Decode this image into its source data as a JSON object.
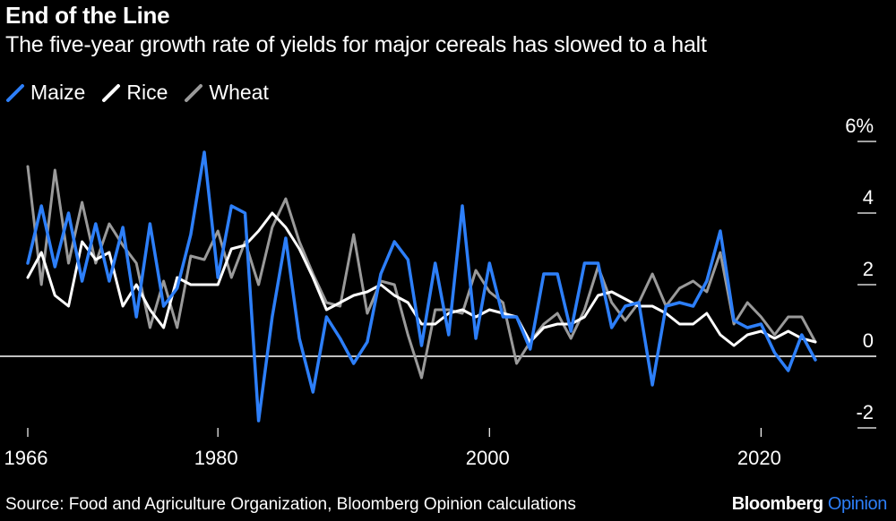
{
  "header": {
    "title": "End of the Line",
    "subtitle": "The five-year growth rate of yields for major cereals has slowed to a halt"
  },
  "footer": {
    "source": "Source: Food and Agriculture Organization, Bloomberg Opinion calculations",
    "brand_main": "Bloomberg",
    "brand_accent": "Opinion"
  },
  "chart_data": {
    "type": "line",
    "title": "End of the Line",
    "subtitle": "The five-year growth rate of yields for major cereals has slowed to a halt",
    "xlabel": "",
    "ylabel": "",
    "xlim": [
      1966,
      2024
    ],
    "ylim": [
      -2,
      6
    ],
    "x_ticks": [
      1966,
      1980,
      2000,
      2020
    ],
    "y_ticks": [
      6,
      4,
      2,
      0,
      -2
    ],
    "y_tick_labels": [
      "6%",
      "4",
      "2",
      "0",
      "-2"
    ],
    "legend_position": "top-left",
    "grid": false,
    "x": [
      1966,
      1967,
      1968,
      1969,
      1970,
      1971,
      1972,
      1973,
      1974,
      1975,
      1976,
      1977,
      1978,
      1979,
      1980,
      1981,
      1982,
      1983,
      1984,
      1985,
      1986,
      1987,
      1988,
      1989,
      1990,
      1991,
      1992,
      1993,
      1994,
      1995,
      1996,
      1997,
      1998,
      1999,
      2000,
      2001,
      2002,
      2003,
      2004,
      2005,
      2006,
      2007,
      2008,
      2009,
      2010,
      2011,
      2012,
      2013,
      2014,
      2015,
      2016,
      2017,
      2018,
      2019,
      2020,
      2021,
      2022,
      2023,
      2024
    ],
    "series": [
      {
        "name": "Maize",
        "color": "#2d7ff9",
        "values": [
          2.6,
          4.2,
          2.5,
          4.0,
          2.1,
          3.7,
          2.1,
          3.6,
          1.1,
          3.7,
          1.4,
          1.9,
          3.4,
          5.7,
          2.2,
          4.2,
          4.0,
          -1.8,
          1.1,
          3.3,
          0.5,
          -1.0,
          1.1,
          0.5,
          -0.2,
          0.4,
          2.3,
          3.2,
          2.7,
          0.3,
          2.6,
          0.6,
          4.2,
          0.5,
          2.6,
          1.1,
          1.1,
          0.2,
          2.3,
          2.3,
          0.7,
          2.6,
          2.6,
          0.8,
          1.4,
          1.5,
          -0.8,
          1.4,
          1.5,
          1.4,
          2.1,
          3.5,
          1.0,
          0.8,
          0.9,
          0.1,
          -0.4,
          0.6,
          -0.1
        ]
      },
      {
        "name": "Rice",
        "color": "#ffffff",
        "values": [
          2.2,
          2.9,
          1.7,
          1.4,
          3.2,
          2.7,
          2.9,
          1.4,
          2.0,
          1.3,
          0.8,
          2.2,
          2.0,
          2.0,
          2.0,
          3.0,
          3.1,
          3.5,
          4.0,
          3.6,
          3.0,
          2.2,
          1.3,
          1.5,
          1.7,
          1.8,
          2.0,
          1.7,
          1.5,
          0.9,
          0.9,
          1.2,
          1.3,
          1.1,
          1.3,
          1.2,
          1.1,
          0.4,
          0.8,
          0.9,
          0.9,
          1.1,
          1.7,
          1.8,
          1.6,
          1.4,
          1.4,
          1.2,
          0.9,
          0.9,
          1.2,
          0.6,
          0.3,
          0.6,
          0.7,
          0.5,
          0.7,
          0.5,
          0.4
        ]
      },
      {
        "name": "Wheat",
        "color": "#9a9a9a",
        "values": [
          5.3,
          2.0,
          5.2,
          2.6,
          4.3,
          2.6,
          3.7,
          3.1,
          2.6,
          0.8,
          2.1,
          0.8,
          2.8,
          2.7,
          3.5,
          2.2,
          3.2,
          2.0,
          3.6,
          4.4,
          3.2,
          2.3,
          1.5,
          1.4,
          3.4,
          1.2,
          2.1,
          2.0,
          0.6,
          -0.6,
          1.3,
          1.3,
          1.2,
          2.4,
          1.8,
          1.5,
          -0.2,
          0.4,
          0.9,
          1.2,
          0.5,
          1.3,
          2.5,
          1.5,
          1.0,
          1.5,
          2.3,
          1.4,
          1.9,
          2.1,
          1.8,
          2.9,
          0.9,
          1.5,
          1.1,
          0.6,
          1.1,
          1.1,
          0.4
        ]
      }
    ]
  }
}
